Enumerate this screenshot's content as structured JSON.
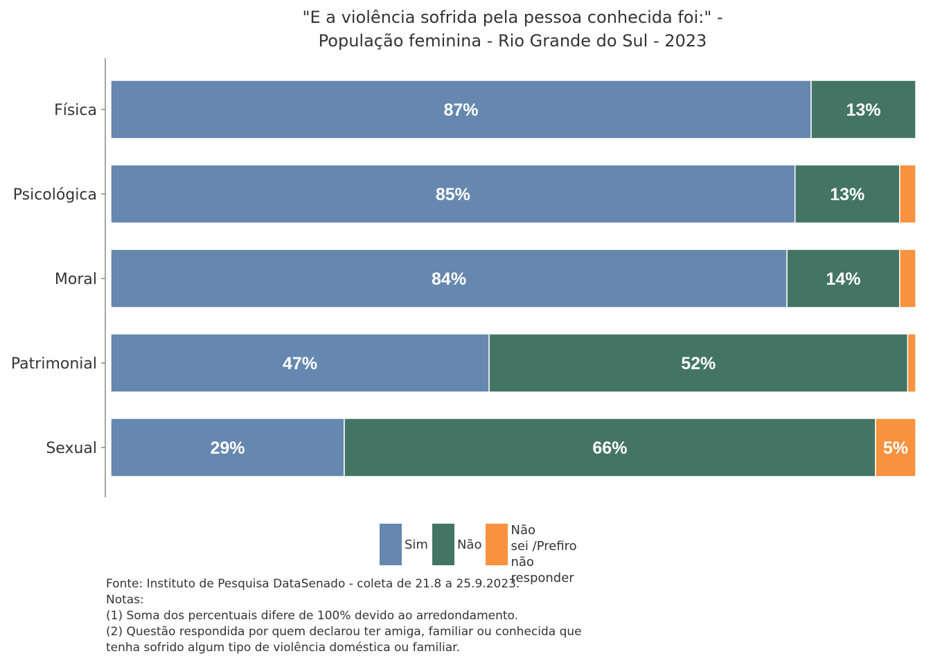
{
  "title": {
    "line1": "\"E a violência sofrida pela pessoa conhecida foi:\" -",
    "line2": "População feminina - Rio Grande do Sul - 2023"
  },
  "colors": {
    "sim": "#6688b0",
    "nao": "#447564",
    "ns": "#f8923e"
  },
  "chart_data": {
    "type": "bar",
    "orientation": "horizontal",
    "stacked": true,
    "title": "\"E a violência sofrida pela pessoa conhecida foi:\" - População feminina - Rio Grande do Sul - 2023",
    "categories": [
      "Física",
      "Psicológica",
      "Moral",
      "Patrimonial",
      "Sexual"
    ],
    "series": [
      {
        "name": "Sim",
        "values": [
          87,
          85,
          84,
          47,
          29
        ],
        "labels": [
          "87%",
          "85%",
          "84%",
          "47%",
          "29%"
        ]
      },
      {
        "name": "Não",
        "values": [
          13,
          13,
          14,
          52,
          66
        ],
        "labels": [
          "13%",
          "13%",
          "14%",
          "52%",
          "66%"
        ]
      },
      {
        "name": "Não sei /Prefiro não responder",
        "values": [
          0,
          2,
          2,
          2,
          5
        ],
        "labels": [
          "",
          "",
          "",
          "",
          "5%"
        ]
      }
    ],
    "xlim": [
      0,
      100
    ],
    "grid": false,
    "legend_position": "bottom"
  },
  "legend": {
    "sim": "Sim",
    "nao": "Não",
    "ns": [
      "Não",
      "sei /Prefiro",
      "não responder"
    ]
  },
  "notes": [
    "Fonte: Instituto de Pesquisa DataSenado - coleta de 21.8 a 25.9.2023.",
    "Notas:",
    "(1) Soma dos percentuais difere de 100% devido ao arredondamento.",
    "(2) Questão respondida por quem declarou ter amiga, familiar ou conhecida que",
    "tenha sofrido algum tipo de violência doméstica ou familiar."
  ]
}
